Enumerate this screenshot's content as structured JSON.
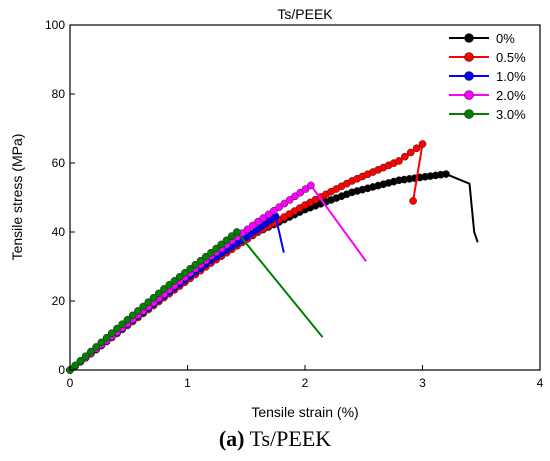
{
  "caption": {
    "letter": "(a)",
    "text": "Ts/PEEK"
  },
  "chart_data": {
    "type": "line",
    "title": "Ts/PEEK",
    "xlabel": "Tensile strain (%)",
    "ylabel": "Tensile stress (MPa)",
    "xlim": [
      0,
      4
    ],
    "ylim": [
      0,
      100
    ],
    "xticks": [
      "0",
      "1",
      "2",
      "3",
      "4"
    ],
    "yticks": [
      "0",
      "20",
      "40",
      "60",
      "80",
      "100"
    ],
    "grid": false,
    "legend_position": "top-right",
    "marker": "circle",
    "series": [
      {
        "name": "0%",
        "color": "#000000",
        "peak_strain": 3.2,
        "points": [
          [
            0.0,
            0.0
          ],
          [
            0.4,
            11.0
          ],
          [
            0.8,
            21.8
          ],
          [
            1.2,
            32.0
          ],
          [
            1.6,
            40.0
          ],
          [
            2.0,
            46.5
          ],
          [
            2.4,
            51.5
          ],
          [
            2.8,
            55.0
          ],
          [
            3.2,
            56.8
          ],
          [
            3.4,
            54.0
          ],
          [
            3.44,
            40.0
          ],
          [
            3.47,
            37.0
          ]
        ]
      },
      {
        "name": "0.5%",
        "color": "#ff0000",
        "peak_strain": 3.0,
        "points": [
          [
            0.0,
            0.0
          ],
          [
            0.4,
            10.6
          ],
          [
            0.8,
            21.0
          ],
          [
            1.2,
            31.0
          ],
          [
            1.6,
            40.0
          ],
          [
            2.0,
            47.8
          ],
          [
            2.4,
            54.8
          ],
          [
            2.8,
            60.6
          ],
          [
            3.0,
            65.5
          ],
          [
            2.92,
            49.0
          ]
        ]
      },
      {
        "name": "1.0%",
        "color": "#0000ff",
        "peak_strain": 1.75,
        "points": [
          [
            0.0,
            0.0
          ],
          [
            0.4,
            10.8
          ],
          [
            0.8,
            21.5
          ],
          [
            1.2,
            31.8
          ],
          [
            1.5,
            38.5
          ],
          [
            1.75,
            44.5
          ],
          [
            1.82,
            34.0
          ]
        ]
      },
      {
        "name": "2.0%",
        "color": "#ff00ff",
        "peak_strain": 2.05,
        "points": [
          [
            0.0,
            0.0
          ],
          [
            0.4,
            11.0
          ],
          [
            0.8,
            22.0
          ],
          [
            1.2,
            33.0
          ],
          [
            1.6,
            43.0
          ],
          [
            2.05,
            53.5
          ],
          [
            2.52,
            31.5
          ]
        ]
      },
      {
        "name": "3.0%",
        "color": "#008000",
        "peak_strain": 1.42,
        "points": [
          [
            0.0,
            0.0
          ],
          [
            0.4,
            12.0
          ],
          [
            0.8,
            23.5
          ],
          [
            1.2,
            34.0
          ],
          [
            1.42,
            40.0
          ],
          [
            2.15,
            9.5
          ]
        ]
      }
    ]
  }
}
